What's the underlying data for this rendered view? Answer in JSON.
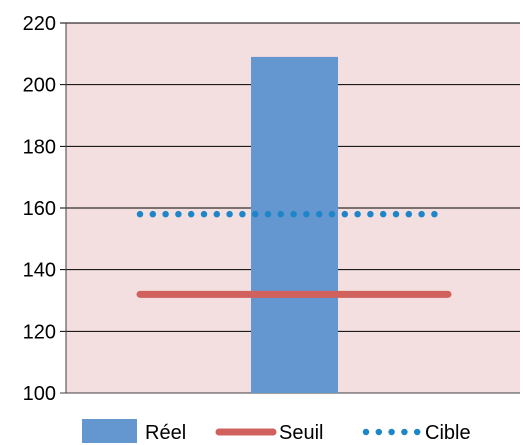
{
  "chart_data": {
    "type": "bar",
    "title": "",
    "xlabel": "",
    "ylabel": "",
    "ylim": [
      100,
      220
    ],
    "yticks": [
      100,
      120,
      140,
      160,
      180,
      200,
      220
    ],
    "grid": "horizontal",
    "legend_position": "bottom",
    "plot_background": "#f4dfe0",
    "series": [
      {
        "name": "Réel",
        "kind": "bar",
        "value": 209,
        "color": "#6497cf"
      },
      {
        "name": "Seuil",
        "kind": "line",
        "value": 132,
        "color": "#d0615c"
      },
      {
        "name": "Cible",
        "kind": "dotted-line",
        "value": 158,
        "color": "#1e86c8"
      }
    ]
  }
}
